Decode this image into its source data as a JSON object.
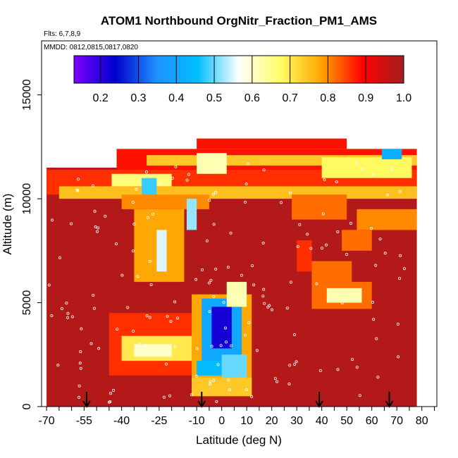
{
  "chart_data": {
    "type": "heatmap",
    "title": "ATOM1 Northbound OrgNitr_Fraction_PM1_AMS",
    "flights_text": "Flts: 6,7,8,9",
    "dates_text": "MMDD: 0812,0815,0817,0820",
    "xlabel": "Latitude (deg N)",
    "ylabel": "Altitude (m)",
    "xlim": [
      -72,
      86
    ],
    "ylim": [
      0,
      17600
    ],
    "x_ticks": [
      -70,
      -55,
      -40,
      -25,
      -10,
      0,
      10,
      20,
      30,
      40,
      50,
      60,
      70,
      80
    ],
    "y_ticks": [
      0,
      5000,
      10000,
      15000
    ],
    "colorbar": {
      "min": 0.13,
      "max": 1.0,
      "ticks": [
        0.2,
        0.3,
        0.4,
        0.5,
        0.6,
        0.7,
        0.8,
        0.9,
        1.0
      ],
      "colors": [
        "#7b00ff",
        "#0000cc",
        "#1e90ff",
        "#00bfff",
        "#ffffff",
        "#ffff66",
        "#ffa500",
        "#ff0000",
        "#a31f1f"
      ]
    },
    "background_value": 0.98,
    "regions": [
      {
        "x": [
          -70,
          78
        ],
        "y": [
          0,
          11500
        ],
        "value": 0.98
      },
      {
        "x": [
          -70,
          78
        ],
        "y": [
          10200,
          11400
        ],
        "value": 0.86
      },
      {
        "x": [
          -65,
          78
        ],
        "y": [
          10000,
          10600
        ],
        "value": 0.75
      },
      {
        "x": [
          -44,
          -20
        ],
        "y": [
          10600,
          11200
        ],
        "value": 0.66
      },
      {
        "x": [
          -32,
          -26
        ],
        "y": [
          10000,
          11000
        ],
        "value": 0.48
      },
      {
        "x": [
          -40,
          -5
        ],
        "y": [
          9500,
          10200
        ],
        "value": 0.8
      },
      {
        "x": [
          -35,
          -15
        ],
        "y": [
          6000,
          9500
        ],
        "value": 0.78
      },
      {
        "x": [
          -26,
          -22
        ],
        "y": [
          6500,
          8500
        ],
        "value": 0.55
      },
      {
        "x": [
          -14,
          -10
        ],
        "y": [
          8500,
          10000
        ],
        "value": 0.52
      },
      {
        "x": [
          -42,
          78
        ],
        "y": [
          11400,
          12400
        ],
        "value": 0.88
      },
      {
        "x": [
          -30,
          78
        ],
        "y": [
          11600,
          12100
        ],
        "value": 0.74
      },
      {
        "x": [
          -10,
          2
        ],
        "y": [
          11200,
          12200
        ],
        "value": 0.62
      },
      {
        "x": [
          40,
          76
        ],
        "y": [
          11000,
          12000
        ],
        "value": 0.68
      },
      {
        "x": [
          64,
          72
        ],
        "y": [
          11900,
          12400
        ],
        "value": 0.42
      },
      {
        "x": [
          -10,
          50
        ],
        "y": [
          12400,
          12900
        ],
        "value": 0.88
      },
      {
        "x": [
          28,
          50
        ],
        "y": [
          9000,
          10200
        ],
        "value": 0.82
      },
      {
        "x": [
          54,
          78
        ],
        "y": [
          8500,
          9500
        ],
        "value": 0.8
      },
      {
        "x": [
          48,
          60
        ],
        "y": [
          7500,
          8500
        ],
        "value": 0.82
      },
      {
        "x": [
          30,
          36
        ],
        "y": [
          6500,
          8000
        ],
        "value": 0.86
      },
      {
        "x": [
          36,
          52
        ],
        "y": [
          6000,
          7000
        ],
        "value": 0.82
      },
      {
        "x": [
          36,
          60
        ],
        "y": [
          4700,
          6000
        ],
        "value": 0.82
      },
      {
        "x": [
          42,
          56
        ],
        "y": [
          5000,
          5700
        ],
        "value": 0.62
      },
      {
        "x": [
          -45,
          -5
        ],
        "y": [
          1500,
          4500
        ],
        "value": 0.86
      },
      {
        "x": [
          -40,
          -10
        ],
        "y": [
          2200,
          3400
        ],
        "value": 0.7
      },
      {
        "x": [
          -35,
          -20
        ],
        "y": [
          2400,
          3000
        ],
        "value": 0.6
      },
      {
        "x": [
          -12,
          12
        ],
        "y": [
          500,
          5400
        ],
        "value": 0.78
      },
      {
        "x": [
          -8,
          8
        ],
        "y": [
          1500,
          5200
        ],
        "value": 0.4
      },
      {
        "x": [
          -4,
          4
        ],
        "y": [
          2800,
          4800
        ],
        "value": 0.22
      },
      {
        "x": [
          -10,
          0
        ],
        "y": [
          1500,
          2200
        ],
        "value": 0.45
      },
      {
        "x": [
          0,
          10
        ],
        "y": [
          1000,
          2500
        ],
        "value": 0.5
      },
      {
        "x": [
          -12,
          12
        ],
        "y": [
          500,
          1400
        ],
        "value": 0.74
      },
      {
        "x": [
          2,
          10
        ],
        "y": [
          4800,
          6000
        ],
        "value": 0.62
      }
    ],
    "flight_arrows_lat": [
      -54,
      -8,
      39,
      67
    ],
    "grid": false
  }
}
